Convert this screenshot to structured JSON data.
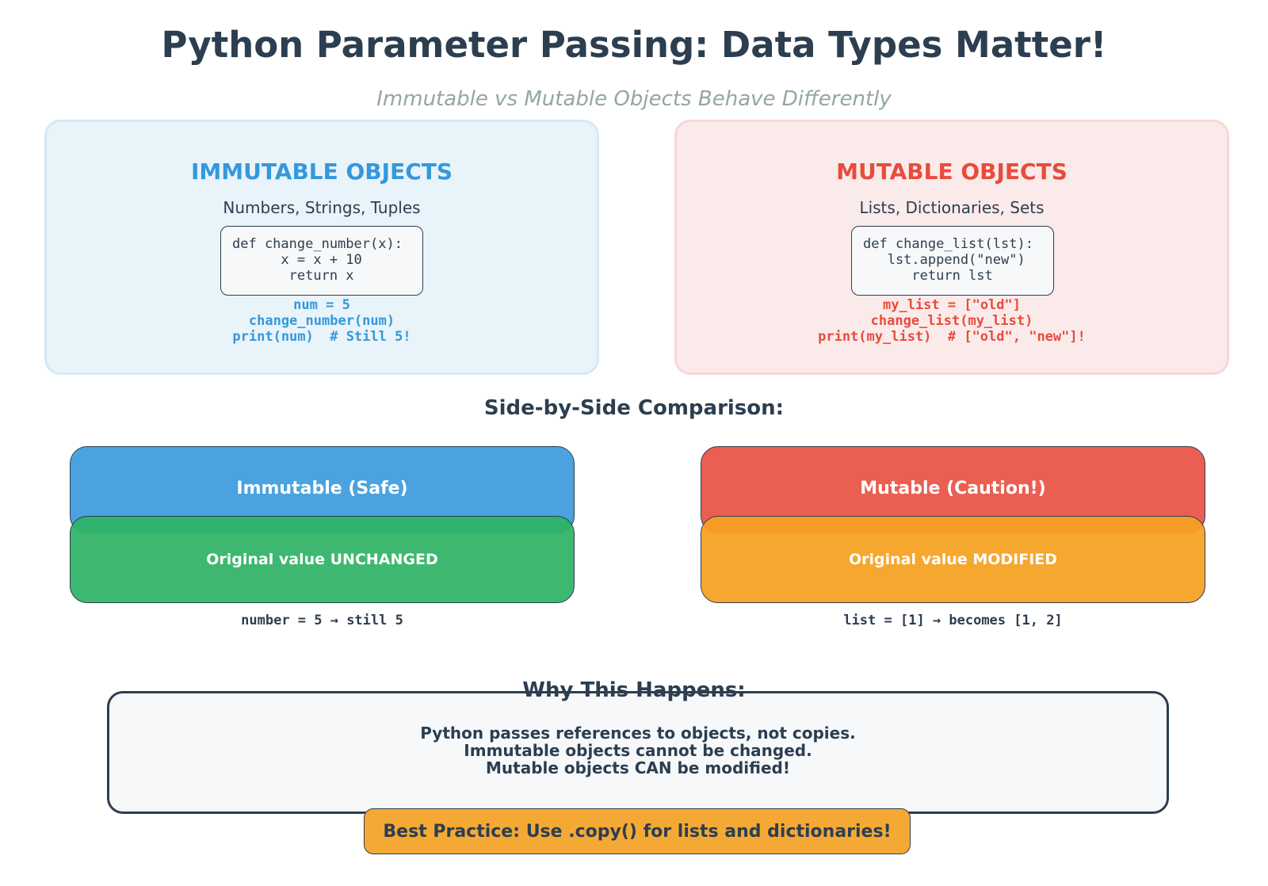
{
  "title": "Python Parameter Passing: Data Types Matter!",
  "subtitle": "Immutable vs Mutable Objects Behave Differently",
  "immutable": {
    "heading": "IMMUTABLE OBJECTS",
    "types": "Numbers, Strings, Tuples",
    "code": "def change_number(x):\n      x = x + 10\n       return x",
    "usage": "num = 5\nchange_number(num)\nprint(num)  # Still 5!",
    "accent": "#3498db"
  },
  "mutable": {
    "heading": "MUTABLE OBJECTS",
    "types": "Lists, Dictionaries, Sets",
    "code": "def change_list(lst):\n   lst.append(\"new\")\n      return lst",
    "usage": "my_list = [\"old\"]\nchange_list(my_list)\nprint(my_list)  # [\"old\", \"new\"]!",
    "accent": "#e74c3c"
  },
  "comparison": {
    "heading": "Side-by-Side Comparison:",
    "left": {
      "top_label": "Immutable (Safe)",
      "bottom_label": "Original value UNCHANGED",
      "example": "number = 5 → still 5",
      "top_color": "#4aa3df",
      "bottom_color": "#3cb870"
    },
    "right": {
      "top_label": "Mutable (Caution!)",
      "bottom_label": "Original value MODIFIED",
      "example": "list = [1] → becomes [1, 2]",
      "top_color": "#ea5f52",
      "bottom_color": "#f5a52a"
    }
  },
  "why": {
    "heading": "Why This Happens:",
    "line1": "Python passes references to objects, not copies.",
    "line2": "Immutable objects cannot be changed.",
    "line3": "Mutable objects CAN be modified!"
  },
  "best_practice": "Best Practice: Use .copy() for lists and dictionaries!"
}
